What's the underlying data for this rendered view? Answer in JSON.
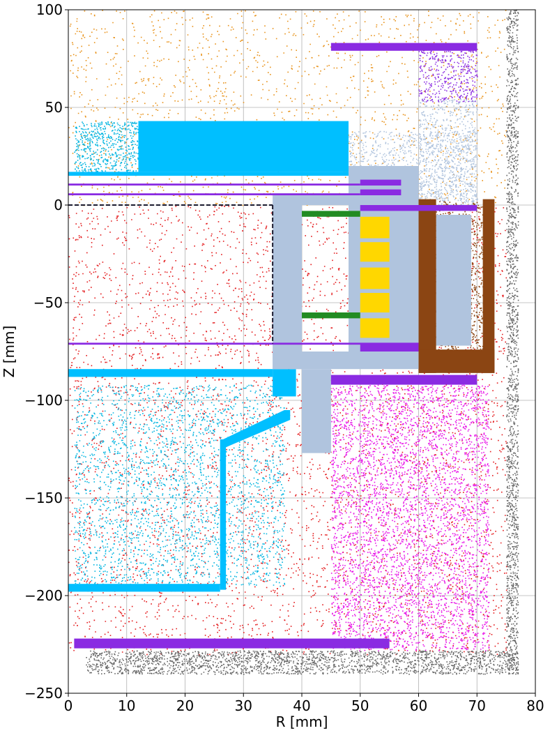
{
  "chart_data": {
    "type": "scatter",
    "xlabel": "R [mm]",
    "ylabel": "Z [mm]",
    "xlim": [
      0,
      80
    ],
    "ylim": [
      -250,
      100
    ],
    "xticks": [
      0,
      10,
      20,
      30,
      40,
      50,
      60,
      70,
      80
    ],
    "yticks": [
      -250,
      -200,
      -150,
      -100,
      -50,
      0,
      50,
      100
    ],
    "xtick_labels": [
      "0",
      "10",
      "20",
      "30",
      "40",
      "50",
      "60",
      "70",
      "80"
    ],
    "ytick_labels": [
      "−250",
      "−200",
      "−150",
      "−100",
      "−50",
      "0",
      "50",
      "100"
    ],
    "grid": true,
    "regions": [
      {
        "kind": "scatter",
        "color": "#e8921a",
        "density": 0.9,
        "r": [
          0,
          75
        ],
        "z": [
          0,
          100
        ]
      },
      {
        "kind": "scatter",
        "color": "#e41a1c",
        "density": 1.1,
        "r": [
          0,
          75
        ],
        "z": [
          -230,
          0
        ]
      },
      {
        "kind": "scatter",
        "color": "#e815e8",
        "density": 5.0,
        "r": [
          45,
          72
        ],
        "z": [
          -228,
          -92
        ]
      },
      {
        "kind": "scatter",
        "color": "#666666",
        "density": 10.0,
        "r": [
          3,
          77
        ],
        "z": [
          -240,
          -228
        ]
      },
      {
        "kind": "scatter",
        "color": "#666666",
        "density": 10.0,
        "r": [
          75,
          77
        ],
        "z": [
          -240,
          100
        ]
      },
      {
        "kind": "scatter",
        "color": "#b0c4de",
        "density": 5.0,
        "r": [
          48,
          70
        ],
        "z": [
          0,
          38
        ]
      },
      {
        "kind": "scatter",
        "color": "#b0c4de",
        "density": 5.0,
        "r": [
          60,
          70
        ],
        "z": [
          0,
          55
        ]
      },
      {
        "kind": "scatter",
        "color": "#8b4513",
        "density": 6.0,
        "r": [
          60,
          72
        ],
        "z": [
          -75,
          2
        ]
      },
      {
        "kind": "scatter",
        "color": "#00b4e0",
        "density": 8.0,
        "r": [
          1,
          12
        ],
        "z": [
          17,
          43
        ]
      },
      {
        "kind": "scatter",
        "color": "#00b4e0",
        "density": 3.0,
        "r": [
          1,
          37
        ],
        "z": [
          -195,
          -92
        ]
      },
      {
        "kind": "scatter",
        "color": "#8a2be2",
        "density": 6.0,
        "r": [
          60,
          70
        ],
        "z": [
          53,
          83
        ]
      },
      {
        "kind": "rect",
        "color": "#00bfff",
        "r": [
          12,
          48
        ],
        "z": [
          17,
          43
        ]
      },
      {
        "kind": "rect",
        "color": "#00bfff",
        "r": [
          0,
          48
        ],
        "z": [
          15,
          17
        ]
      },
      {
        "kind": "rect",
        "color": "#00bfff",
        "r": [
          0,
          35
        ],
        "z": [
          -88,
          -84
        ]
      },
      {
        "kind": "rect",
        "color": "#00bfff",
        "r": [
          26,
          27
        ],
        "z": [
          -197,
          -120
        ]
      },
      {
        "kind": "rect",
        "color": "#00bfff",
        "r": [
          0,
          26
        ],
        "z": [
          -198,
          -194
        ]
      },
      {
        "kind": "rect",
        "color": "#00bfff",
        "r": [
          35,
          39
        ],
        "z": [
          -98,
          -84
        ]
      },
      {
        "kind": "polygon",
        "color": "#00bfff",
        "points": [
          [
            26.5,
            -120
          ],
          [
            37,
            -105
          ],
          [
            38,
            -105
          ],
          [
            38,
            -110
          ],
          [
            27,
            -124
          ]
        ]
      },
      {
        "kind": "rect",
        "color": "#b0c4de",
        "r": [
          35,
          40
        ],
        "z": [
          -84,
          0
        ]
      },
      {
        "kind": "rect",
        "color": "#b0c4de",
        "r": [
          35,
          60
        ],
        "z": [
          -84,
          -75
        ]
      },
      {
        "kind": "rect",
        "color": "#b0c4de",
        "r": [
          40,
          45
        ],
        "z": [
          -127,
          -84
        ]
      },
      {
        "kind": "rect",
        "color": "#b0c4de",
        "r": [
          48,
          60
        ],
        "z": [
          -75,
          20
        ]
      },
      {
        "kind": "rect",
        "color": "#b0c4de",
        "r": [
          35,
          60
        ],
        "z": [
          0,
          6
        ]
      },
      {
        "kind": "rect",
        "color": "#b0c4de",
        "r": [
          63,
          69
        ],
        "z": [
          -72,
          -5
        ]
      },
      {
        "kind": "rect",
        "color": "#8b4513",
        "r": [
          60,
          63
        ],
        "z": [
          -86,
          3
        ]
      },
      {
        "kind": "rect",
        "color": "#8b4513",
        "r": [
          71,
          73
        ],
        "z": [
          -86,
          3
        ]
      },
      {
        "kind": "rect",
        "color": "#8b4513",
        "r": [
          60,
          73
        ],
        "z": [
          -86,
          -74
        ]
      },
      {
        "kind": "rect",
        "color": "#8a2be2",
        "r": [
          45,
          70
        ],
        "z": [
          79,
          83
        ]
      },
      {
        "kind": "rect",
        "color": "#8a2be2",
        "r": [
          50,
          57
        ],
        "z": [
          10,
          13
        ]
      },
      {
        "kind": "rect",
        "color": "#8a2be2",
        "r": [
          50,
          57
        ],
        "z": [
          5,
          8
        ]
      },
      {
        "kind": "rect",
        "color": "#8a2be2",
        "r": [
          50,
          70
        ],
        "z": [
          -3,
          0
        ]
      },
      {
        "kind": "rect",
        "color": "#8a2be2",
        "r": [
          50,
          60
        ],
        "z": [
          -75,
          -71
        ]
      },
      {
        "kind": "rect",
        "color": "#8a2be2",
        "r": [
          45,
          70
        ],
        "z": [
          -92,
          -87
        ]
      },
      {
        "kind": "rect",
        "color": "#8a2be2",
        "r": [
          1,
          55
        ],
        "z": [
          -227,
          -222
        ]
      },
      {
        "kind": "rect",
        "color": "#8a2be2",
        "r": [
          0,
          50
        ],
        "z": [
          10,
          11
        ]
      },
      {
        "kind": "rect",
        "color": "#8a2be2",
        "r": [
          0,
          50
        ],
        "z": [
          5,
          6
        ]
      },
      {
        "kind": "rect",
        "color": "#8a2be2",
        "r": [
          0,
          60
        ],
        "z": [
          -71.5,
          -70.5
        ]
      },
      {
        "kind": "rect",
        "color": "#228b22",
        "r": [
          40,
          50
        ],
        "z": [
          -6,
          -3
        ]
      },
      {
        "kind": "rect",
        "color": "#228b22",
        "r": [
          40,
          50
        ],
        "z": [
          -58,
          -55
        ]
      },
      {
        "kind": "rect",
        "color": "#ffd700",
        "r": [
          50,
          55
        ],
        "z": [
          -17,
          -6
        ]
      },
      {
        "kind": "rect",
        "color": "#ffd700",
        "r": [
          50,
          55
        ],
        "z": [
          -29,
          -19
        ]
      },
      {
        "kind": "rect",
        "color": "#ffd700",
        "r": [
          50,
          55
        ],
        "z": [
          -43,
          -32
        ]
      },
      {
        "kind": "rect",
        "color": "#ffd700",
        "r": [
          50,
          55
        ],
        "z": [
          -55,
          -45
        ]
      },
      {
        "kind": "rect",
        "color": "#ffd700",
        "r": [
          50,
          55
        ],
        "z": [
          -68,
          -58
        ]
      },
      {
        "kind": "line",
        "color": "#1a1a2e",
        "points": [
          [
            0,
            0
          ],
          [
            35,
            0
          ]
        ],
        "dash": true
      },
      {
        "kind": "line",
        "color": "#1a1a2e",
        "points": [
          [
            35,
            0
          ],
          [
            35,
            -71
          ]
        ],
        "dash": true
      }
    ]
  }
}
